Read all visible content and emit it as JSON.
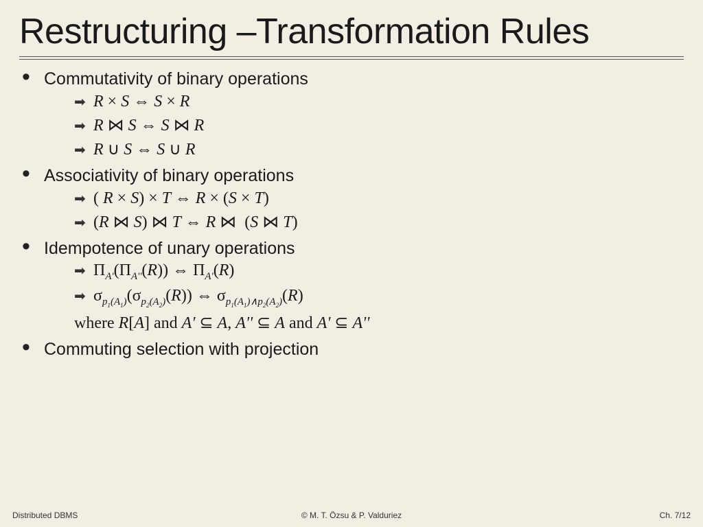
{
  "title": "Restructuring –Transformation Rules",
  "sections": [
    {
      "heading": "Commutativity of binary operations",
      "rules": [
        "R × S ⇔ S × R",
        "R ⋈ S ⇔ S ⋈ R",
        "R ∪ S ⇔ S ∪ R"
      ]
    },
    {
      "heading": "Associativity of binary operations",
      "rules": [
        "( R × S) × T ⇔ R × (S × T)",
        "(R ⋈ S) ⋈ T ⇔ R ⋈ (S ⋈ T)"
      ]
    },
    {
      "heading": "Idempotence of unary operations",
      "rules": [
        "ΠA'(ΠA''(R)) ⇔ ΠA'(R)",
        "σp1(A1)(σp2(A2)(R)) ⇔ σp1(A1)∧p2(A2)(R)"
      ],
      "where": "where R[A] and A' ⊆ A, A'' ⊆ A and A' ⊆ A''"
    },
    {
      "heading": "Commuting selection with projection",
      "rules": []
    }
  ],
  "footer": {
    "left": "Distributed DBMS",
    "center": "© M. T. Özsu & P. Valduriez",
    "right": "Ch. 7/12"
  },
  "colors": {
    "background": "#f2eee3",
    "text": "#1a1a1a",
    "rule": "#5a5a5a"
  },
  "typography": {
    "title_fontsize": 52,
    "heading_fontsize": 25,
    "formula_fontsize": 24,
    "footer_fontsize": 12,
    "title_font": "Arial",
    "formula_font": "Times New Roman"
  }
}
